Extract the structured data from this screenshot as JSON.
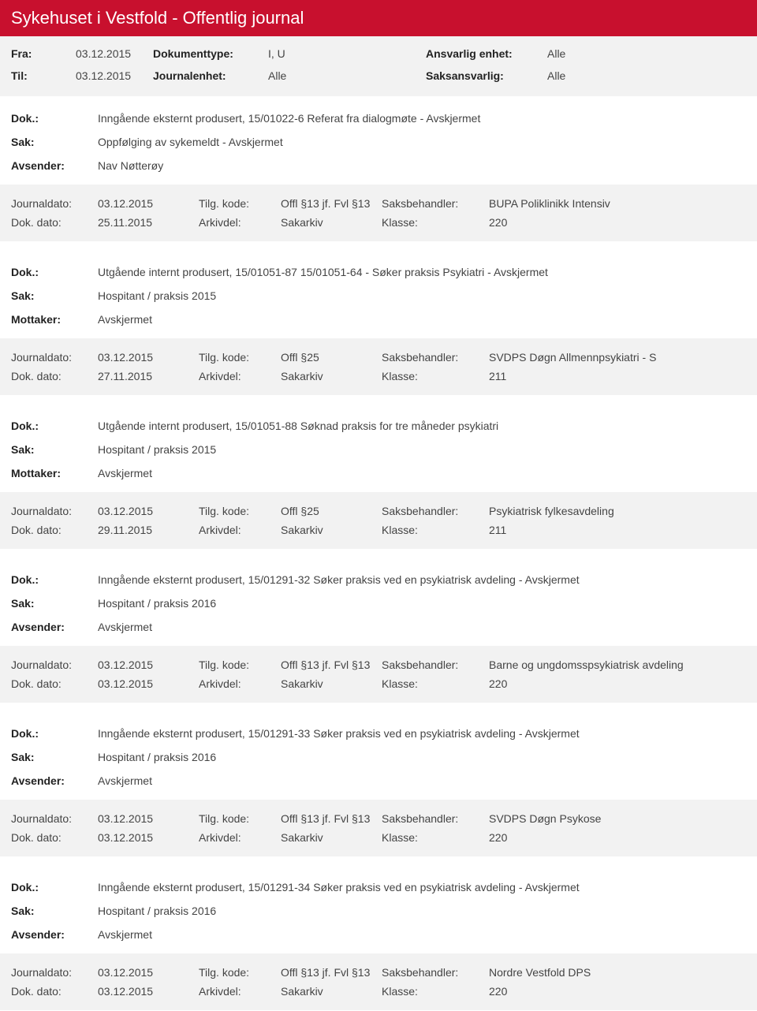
{
  "header_title": "Sykehuset i Vestfold - Offentlig journal",
  "meta": {
    "fra_lbl": "Fra:",
    "fra_val": "03.12.2015",
    "til_lbl": "Til:",
    "til_val": "03.12.2015",
    "doktype_lbl": "Dokumenttype:",
    "doktype_val": "I, U",
    "journalenhet_lbl": "Journalenhet:",
    "journalenhet_val": "Alle",
    "ansvarlig_lbl": "Ansvarlig enhet:",
    "ansvarlig_val": "Alle",
    "saksansvarlig_lbl": "Saksansvarlig:",
    "saksansvarlig_val": "Alle"
  },
  "labels": {
    "dok": "Dok.:",
    "sak": "Sak:",
    "avsender": "Avsender:",
    "mottaker": "Mottaker:",
    "journaldato": "Journaldato:",
    "tilgkode": "Tilg. kode:",
    "saksbehandler": "Saksbehandler:",
    "dokdato": "Dok. dato:",
    "arkivdel": "Arkivdel:",
    "klasse": "Klasse:"
  },
  "entries": [
    {
      "dok": "Inngående eksternt produsert, 15/01022-6 Referat fra dialogmøte - Avskjermet",
      "sak": "Oppfølging av sykemeldt - Avskjermet",
      "party_lbl": "Avsender:",
      "party_val": "Nav Nøtterøy",
      "r1": {
        "journaldato": "03.12.2015",
        "tilgkode": "Offl §13 jf. Fvl §13",
        "saksbehandler": "BUPA Poliklinikk Intensiv"
      },
      "r2": {
        "dokdato": "25.11.2015",
        "arkivdel": "Sakarkiv",
        "klasse": "220"
      }
    },
    {
      "dok": "Utgående internt produsert, 15/01051-87 15/01051-64 - Søker praksis Psykiatri - Avskjermet",
      "sak": "Hospitant / praksis 2015",
      "party_lbl": "Mottaker:",
      "party_val": "Avskjermet",
      "r1": {
        "journaldato": "03.12.2015",
        "tilgkode": "Offl §25",
        "saksbehandler": "SVDPS Døgn Allmennpsykiatri - S"
      },
      "r2": {
        "dokdato": "27.11.2015",
        "arkivdel": "Sakarkiv",
        "klasse": "211"
      }
    },
    {
      "dok": "Utgående internt produsert, 15/01051-88 Søknad praksis for tre måneder psykiatri",
      "sak": "Hospitant / praksis 2015",
      "party_lbl": "Mottaker:",
      "party_val": "Avskjermet",
      "r1": {
        "journaldato": "03.12.2015",
        "tilgkode": "Offl §25",
        "saksbehandler": "Psykiatrisk fylkesavdeling"
      },
      "r2": {
        "dokdato": "29.11.2015",
        "arkivdel": "Sakarkiv",
        "klasse": "211"
      }
    },
    {
      "dok": "Inngående eksternt produsert, 15/01291-32 Søker praksis ved en psykiatrisk avdeling - Avskjermet",
      "sak": "Hospitant / praksis 2016",
      "party_lbl": "Avsender:",
      "party_val": "Avskjermet",
      "r1": {
        "journaldato": "03.12.2015",
        "tilgkode": "Offl §13 jf. Fvl §13",
        "saksbehandler": "Barne og ungdomsspsykiatrisk avdeling"
      },
      "r2": {
        "dokdato": "03.12.2015",
        "arkivdel": "Sakarkiv",
        "klasse": "220"
      }
    },
    {
      "dok": "Inngående eksternt produsert, 15/01291-33 Søker praksis ved en psykiatrisk avdeling - Avskjermet",
      "sak": "Hospitant / praksis 2016",
      "party_lbl": "Avsender:",
      "party_val": "Avskjermet",
      "r1": {
        "journaldato": "03.12.2015",
        "tilgkode": "Offl §13 jf. Fvl §13",
        "saksbehandler": "SVDPS Døgn Psykose"
      },
      "r2": {
        "dokdato": "03.12.2015",
        "arkivdel": "Sakarkiv",
        "klasse": "220"
      }
    },
    {
      "dok": "Inngående eksternt produsert, 15/01291-34 Søker praksis ved en psykiatrisk avdeling - Avskjermet",
      "sak": "Hospitant / praksis 2016",
      "party_lbl": "Avsender:",
      "party_val": "Avskjermet",
      "r1": {
        "journaldato": "03.12.2015",
        "tilgkode": "Offl §13 jf. Fvl §13",
        "saksbehandler": "Nordre Vestfold DPS"
      },
      "r2": {
        "dokdato": "03.12.2015",
        "arkivdel": "Sakarkiv",
        "klasse": "220"
      }
    }
  ]
}
